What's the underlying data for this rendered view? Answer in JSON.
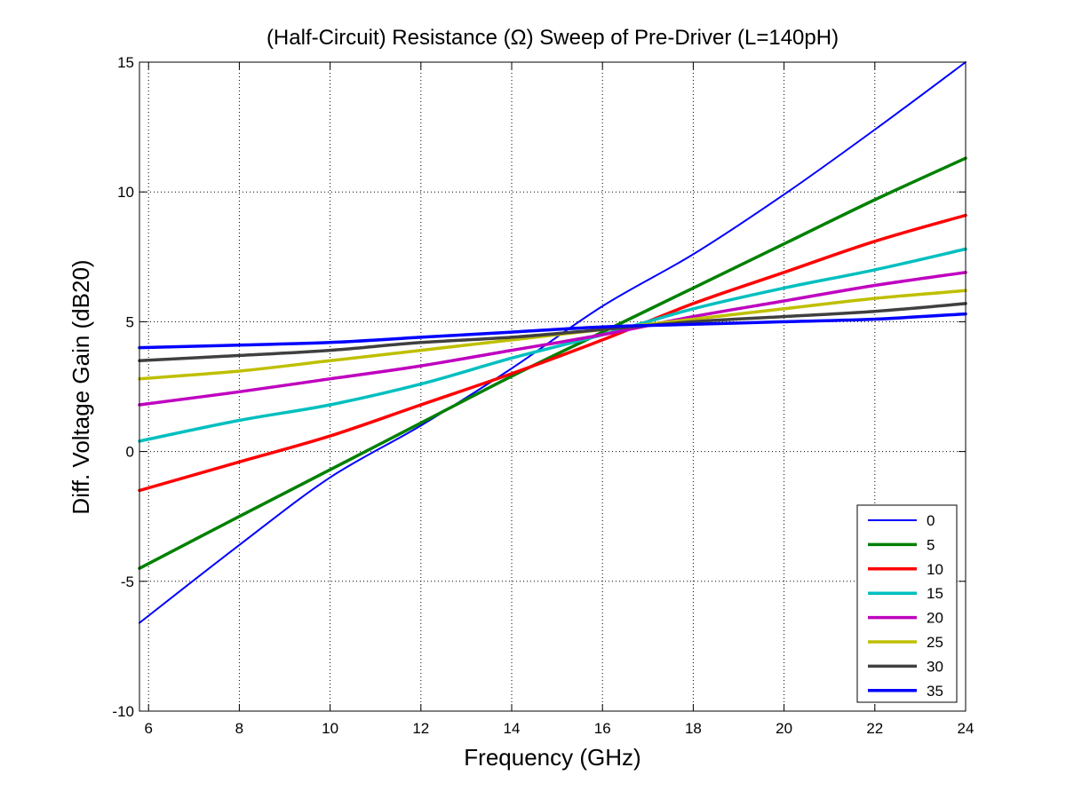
{
  "chart_data": {
    "type": "line",
    "title": "(Half-Circuit) Resistance (Ω) Sweep of Pre-Driver (L=140pH)",
    "xlabel": "Frequency (GHz)",
    "ylabel": "Diff. Voltage Gain (dB20)",
    "xlim": [
      5.8,
      24
    ],
    "ylim": [
      -10,
      15
    ],
    "xticks": [
      6,
      8,
      10,
      12,
      14,
      16,
      18,
      20,
      22,
      24
    ],
    "yticks": [
      -10,
      -5,
      0,
      5,
      10,
      15
    ],
    "grid": true,
    "legend_position": "bottom-right",
    "x": [
      5.8,
      8,
      10,
      12,
      14,
      16,
      18,
      20,
      22,
      24
    ],
    "series": [
      {
        "name": "0",
        "color": "#0000ff",
        "line": "thin",
        "values": [
          -6.6,
          -3.6,
          -1.0,
          1.0,
          3.2,
          5.6,
          7.6,
          9.9,
          12.4,
          15.0
        ]
      },
      {
        "name": "5",
        "color": "#008000",
        "line": "thick",
        "values": [
          -4.5,
          -2.5,
          -0.7,
          1.1,
          2.9,
          4.6,
          6.3,
          8.0,
          9.7,
          11.3
        ]
      },
      {
        "name": "10",
        "color": "#ff0000",
        "line": "thick",
        "values": [
          -1.5,
          -0.4,
          0.6,
          1.8,
          3.0,
          4.3,
          5.7,
          6.9,
          8.1,
          9.1
        ]
      },
      {
        "name": "15",
        "color": "#00bfbf",
        "line": "thick",
        "values": [
          0.4,
          1.2,
          1.8,
          2.6,
          3.6,
          4.5,
          5.5,
          6.3,
          7.0,
          7.8
        ]
      },
      {
        "name": "20",
        "color": "#bf00bf",
        "line": "thick",
        "values": [
          1.8,
          2.3,
          2.8,
          3.3,
          3.9,
          4.5,
          5.2,
          5.8,
          6.4,
          6.9
        ]
      },
      {
        "name": "25",
        "color": "#bfbf00",
        "line": "thick",
        "values": [
          2.8,
          3.1,
          3.5,
          3.9,
          4.3,
          4.7,
          5.1,
          5.5,
          5.9,
          6.2
        ]
      },
      {
        "name": "30",
        "color": "#404040",
        "line": "thick",
        "values": [
          3.5,
          3.7,
          3.9,
          4.2,
          4.4,
          4.7,
          5.0,
          5.2,
          5.4,
          5.7
        ]
      },
      {
        "name": "35",
        "color": "#0000ff",
        "line": "thick",
        "values": [
          4.0,
          4.1,
          4.2,
          4.4,
          4.6,
          4.8,
          4.9,
          5.0,
          5.1,
          5.3
        ]
      }
    ]
  }
}
